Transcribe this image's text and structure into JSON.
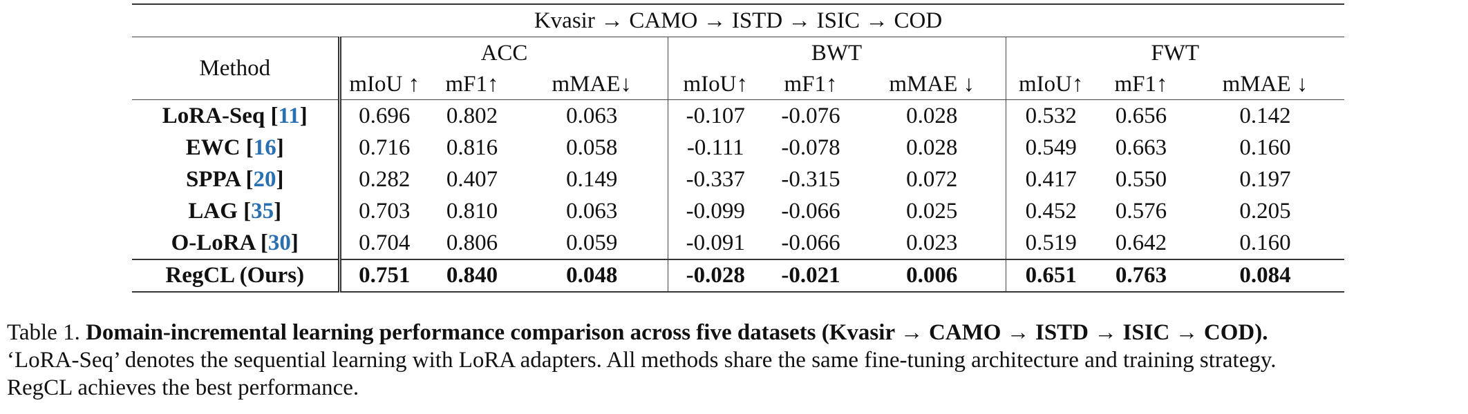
{
  "table": {
    "span_title": "Kvasir → CAMO → ISTD → ISIC → COD",
    "method_header": "Method",
    "groups": [
      "ACC",
      "BWT",
      "FWT"
    ],
    "metrics": [
      "mIoU ↑",
      "mF1↑",
      "mMAE↓",
      "mIoU↑",
      "mF1↑",
      "mMAE ↓",
      "mIoU↑",
      "mF1↑",
      "mMAE ↓"
    ],
    "rows": [
      {
        "name": "LoRA-Seq",
        "cite": "11",
        "values": [
          "0.696",
          "0.802",
          "0.063",
          "-0.107",
          "-0.076",
          "0.028",
          "0.532",
          "0.656",
          "0.142"
        ]
      },
      {
        "name": "EWC",
        "cite": "16",
        "values": [
          "0.716",
          "0.816",
          "0.058",
          "-0.111",
          "-0.078",
          "0.028",
          "0.549",
          "0.663",
          "0.160"
        ]
      },
      {
        "name": "SPPA",
        "cite": "20",
        "values": [
          "0.282",
          "0.407",
          "0.149",
          "-0.337",
          "-0.315",
          "0.072",
          "0.417",
          "0.550",
          "0.197"
        ]
      },
      {
        "name": "LAG",
        "cite": "35",
        "values": [
          "0.703",
          "0.810",
          "0.063",
          "-0.099",
          "-0.066",
          "0.025",
          "0.452",
          "0.576",
          "0.205"
        ]
      },
      {
        "name": "O-LoRA",
        "cite": "30",
        "values": [
          "0.704",
          "0.806",
          "0.059",
          "-0.091",
          "-0.066",
          "0.023",
          "0.519",
          "0.642",
          "0.160"
        ]
      }
    ],
    "ours": {
      "name": "RegCL (Ours)",
      "values": [
        "0.751",
        "0.840",
        "0.048",
        "-0.028",
        "-0.021",
        "0.006",
        "0.651",
        "0.763",
        "0.084"
      ]
    }
  },
  "caption": {
    "label": "Table 1. ",
    "title": "Domain-incremental learning performance comparison across five datasets (Kvasir → CAMO → ISTD → ISIC → COD).",
    "line2": "‘LoRA-Seq’ denotes the sequential learning with LoRA adapters. All methods share the same fine-tuning architecture and training strategy.",
    "line3": "RegCL achieves the best performance."
  }
}
